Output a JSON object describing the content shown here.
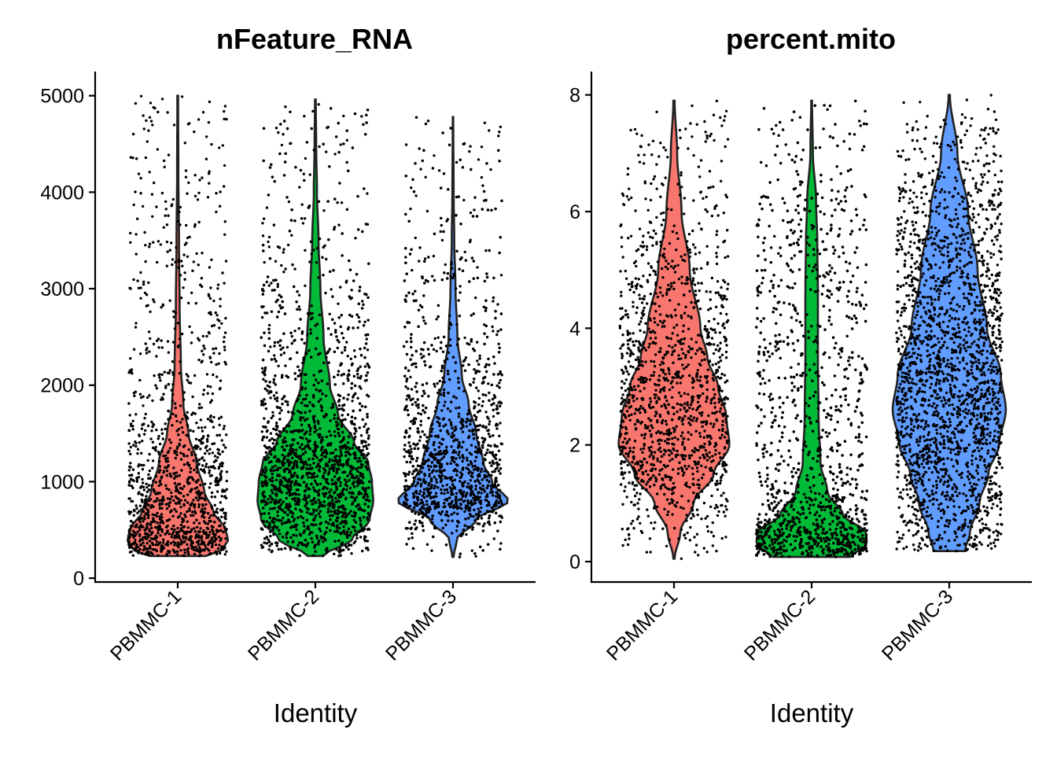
{
  "chart_data": [
    {
      "type": "violin",
      "title": "nFeature_RNA",
      "xlabel": "Identity",
      "ylabel": "",
      "ylim": [
        -40,
        5250
      ],
      "yticks": [
        0,
        1000,
        2000,
        3000,
        4000,
        5000
      ],
      "ytick_labels": [
        "0",
        "1000",
        "2000",
        "3000",
        "4000",
        "5000"
      ],
      "categories": [
        "PBMMC-1",
        "PBMMC-2",
        "PBMMC-3"
      ],
      "series": [
        {
          "name": "PBMMC-1",
          "color": "#F8766D",
          "min": 230,
          "max": 5000,
          "jitter_points": 1300,
          "spread": 0.78,
          "mode": 480,
          "profile": [
            [
              230,
              0.44
            ],
            [
              300,
              0.72
            ],
            [
              400,
              0.8
            ],
            [
              500,
              0.76
            ],
            [
              700,
              0.56
            ],
            [
              900,
              0.42
            ],
            [
              1200,
              0.3
            ],
            [
              1500,
              0.17
            ],
            [
              1800,
              0.09
            ],
            [
              2200,
              0.05
            ],
            [
              2800,
              0.03
            ],
            [
              3500,
              0.02
            ],
            [
              4200,
              0.01
            ],
            [
              5000,
              0.006
            ]
          ]
        },
        {
          "name": "PBMMC-2",
          "color": "#00BA38",
          "min": 230,
          "max": 4960,
          "jitter_points": 2600,
          "spread": 0.86,
          "mode": 900,
          "profile": [
            [
              230,
              0.12
            ],
            [
              400,
              0.58
            ],
            [
              600,
              0.86
            ],
            [
              800,
              0.92
            ],
            [
              1000,
              0.9
            ],
            [
              1200,
              0.84
            ],
            [
              1400,
              0.62
            ],
            [
              1700,
              0.36
            ],
            [
              2000,
              0.23
            ],
            [
              2500,
              0.13
            ],
            [
              3000,
              0.08
            ],
            [
              3500,
              0.05
            ],
            [
              4000,
              0.025
            ],
            [
              4500,
              0.013
            ],
            [
              4960,
              0.006
            ]
          ]
        },
        {
          "name": "PBMMC-3",
          "color": "#619CFF",
          "min": 220,
          "max": 4780,
          "jitter_points": 2000,
          "spread": 0.78,
          "mode": 820,
          "profile": [
            [
              220,
              0.01
            ],
            [
              400,
              0.06
            ],
            [
              600,
              0.36
            ],
            [
              800,
              0.88
            ],
            [
              1000,
              0.62
            ],
            [
              1200,
              0.48
            ],
            [
              1500,
              0.37
            ],
            [
              1800,
              0.25
            ],
            [
              2100,
              0.14
            ],
            [
              2500,
              0.07
            ],
            [
              3000,
              0.04
            ],
            [
              3500,
              0.02
            ],
            [
              4000,
              0.01
            ],
            [
              4780,
              0.004
            ]
          ]
        }
      ]
    },
    {
      "type": "violin",
      "title": "percent.mito",
      "xlabel": "Identity",
      "ylabel": "",
      "ylim": [
        -0.35,
        8.4
      ],
      "yticks": [
        0,
        2,
        4,
        6,
        8
      ],
      "ytick_labels": [
        "0",
        "2",
        "4",
        "6",
        "8"
      ],
      "categories": [
        "PBMMC-1",
        "PBMMC-2",
        "PBMMC-3"
      ],
      "series": [
        {
          "name": "PBMMC-1",
          "color": "#F8766D",
          "min": 0.05,
          "max": 7.9,
          "jitter_points": 1400,
          "spread": 0.86,
          "mode": 2.0,
          "profile": [
            [
              0.05,
              0.01
            ],
            [
              0.5,
              0.1
            ],
            [
              1.0,
              0.31
            ],
            [
              1.5,
              0.63
            ],
            [
              2.0,
              0.88
            ],
            [
              2.5,
              0.83
            ],
            [
              3.0,
              0.7
            ],
            [
              3.5,
              0.53
            ],
            [
              4.0,
              0.42
            ],
            [
              5.0,
              0.25
            ],
            [
              6.0,
              0.12
            ],
            [
              7.0,
              0.05
            ],
            [
              7.9,
              0.01
            ]
          ]
        },
        {
          "name": "PBMMC-2",
          "color": "#00BA38",
          "min": 0.08,
          "max": 7.9,
          "jitter_points": 2400,
          "spread": 0.88,
          "mode": 0.45,
          "profile": [
            [
              0.08,
              0.62
            ],
            [
              0.3,
              0.88
            ],
            [
              0.5,
              0.86
            ],
            [
              0.8,
              0.5
            ],
            [
              1.2,
              0.25
            ],
            [
              1.7,
              0.14
            ],
            [
              2.5,
              0.11
            ],
            [
              3.5,
              0.1
            ],
            [
              4.5,
              0.1
            ],
            [
              5.5,
              0.09
            ],
            [
              6.2,
              0.07
            ],
            [
              7.0,
              0.02
            ],
            [
              7.9,
              0.006
            ]
          ]
        },
        {
          "name": "PBMMC-3",
          "color": "#619CFF",
          "min": 0.18,
          "max": 8.0,
          "jitter_points": 2200,
          "spread": 0.84,
          "mode": 2.6,
          "profile": [
            [
              0.18,
              0.25
            ],
            [
              0.5,
              0.33
            ],
            [
              1.0,
              0.48
            ],
            [
              1.5,
              0.62
            ],
            [
              2.0,
              0.79
            ],
            [
              2.6,
              0.9
            ],
            [
              3.2,
              0.82
            ],
            [
              4.0,
              0.6
            ],
            [
              5.0,
              0.45
            ],
            [
              6.0,
              0.3
            ],
            [
              7.0,
              0.13
            ],
            [
              8.0,
              0.01
            ]
          ]
        }
      ]
    }
  ]
}
